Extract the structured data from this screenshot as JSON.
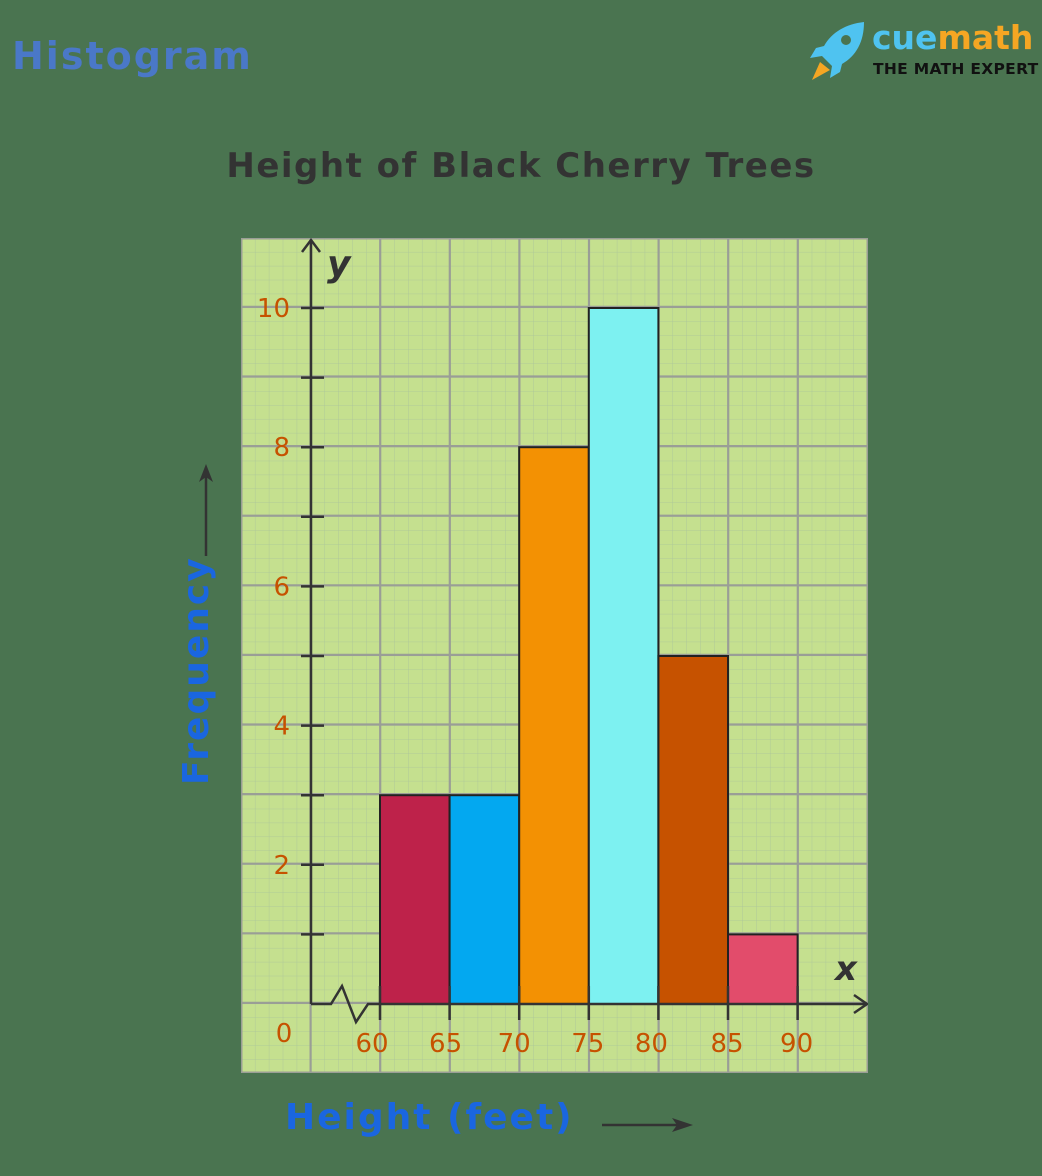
{
  "page_tag": "Histogram",
  "logo": {
    "brand_part1": "cue",
    "brand_part2": "math",
    "tagline": "THE MATH EXPERT",
    "icon": "rocket-icon",
    "colors": {
      "cue": "#4fc3f0",
      "math": "#f5a623"
    }
  },
  "chart_data": {
    "type": "bar",
    "subtype": "histogram",
    "title": "Height of Black Cherry Trees",
    "xlabel": "Height (feet)",
    "ylabel": "Frequency",
    "x_axis_symbol": "x",
    "y_axis_symbol": "y",
    "bins": [
      [
        60,
        65
      ],
      [
        65,
        70
      ],
      [
        70,
        75
      ],
      [
        75,
        80
      ],
      [
        80,
        85
      ],
      [
        85,
        90
      ]
    ],
    "categories": [
      "60-65",
      "65-70",
      "70-75",
      "75-80",
      "80-85",
      "85-90"
    ],
    "values": [
      3,
      3,
      8,
      10,
      5,
      1
    ],
    "bar_colors": [
      "#be224a",
      "#03a8f0",
      "#f39103",
      "#7df1f1",
      "#c65200",
      "#e24c6b"
    ],
    "x_ticks": [
      "60",
      "65",
      "70",
      "75",
      "80",
      "85",
      "90"
    ],
    "y_ticks": [
      "2",
      "4",
      "6",
      "8",
      "10"
    ],
    "origin_label": "0",
    "axis_break": true,
    "xlim": [
      55,
      95
    ],
    "ylim": [
      0,
      10
    ],
    "grid": true,
    "legend": null,
    "colors": {
      "background": "#4a7450",
      "plot_bg": "#c5e08f",
      "tick_label": "#c65200",
      "axis_title": "#1a66e0",
      "title": "#333333"
    }
  }
}
